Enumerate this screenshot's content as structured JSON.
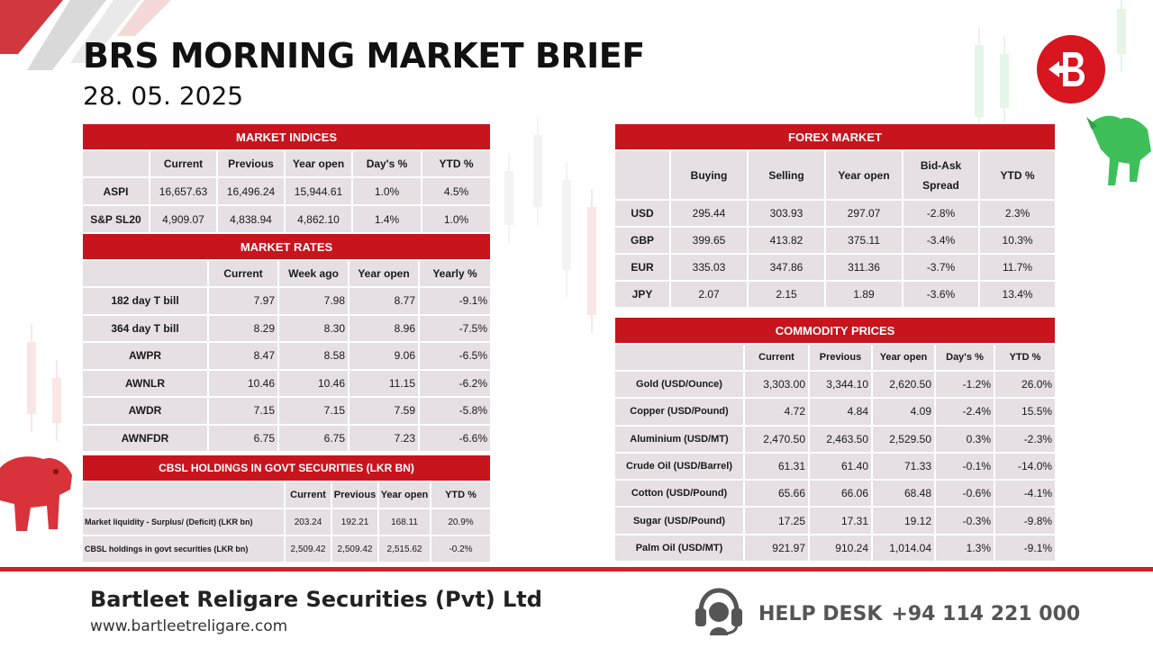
{
  "header": {
    "title": "BRS MORNING MARKET BRIEF",
    "date": "28. 05. 2025"
  },
  "brand": {
    "accent": "#c8141d",
    "cell_bg": "#e6dfe3"
  },
  "market_indices": {
    "title": "MARKET INDICES",
    "columns": [
      "Current",
      "Previous",
      "Year open",
      "Day's %",
      "YTD %"
    ],
    "rows": [
      {
        "label": "ASPI",
        "values": [
          "16,657.63",
          "16,496.24",
          "15,944.61",
          "1.0%",
          "4.5%"
        ]
      },
      {
        "label": "S&P SL20",
        "values": [
          "4,909.07",
          "4,838.94",
          "4,862.10",
          "1.4%",
          "1.0%"
        ]
      }
    ]
  },
  "market_rates": {
    "title": "MARKET RATES",
    "columns": [
      "Current",
      "Week ago",
      "Year open",
      "Yearly %"
    ],
    "rows": [
      {
        "label": "182 day T bill",
        "values": [
          "7.97",
          "7.98",
          "8.77",
          "-9.1%"
        ]
      },
      {
        "label": "364 day T bill",
        "values": [
          "8.29",
          "8.30",
          "8.96",
          "-7.5%"
        ]
      },
      {
        "label": "AWPR",
        "values": [
          "8.47",
          "8.58",
          "9.06",
          "-6.5%"
        ]
      },
      {
        "label": "AWNLR",
        "values": [
          "10.46",
          "10.46",
          "11.15",
          "-6.2%"
        ]
      },
      {
        "label": "AWDR",
        "values": [
          "7.15",
          "7.15",
          "7.59",
          "-5.8%"
        ]
      },
      {
        "label": "AWNFDR",
        "values": [
          "6.75",
          "6.75",
          "7.23",
          "-6.6%"
        ]
      }
    ]
  },
  "cbsl_holdings": {
    "title": "CBSL HOLDINGS IN GOVT SECURITIES (LKR BN)",
    "columns": [
      "Current",
      "Previous",
      "Year open",
      "YTD %"
    ],
    "rows": [
      {
        "label": "Market liquidity - Surplus/ (Deficit) (LKR bn)",
        "values": [
          "203.24",
          "192.21",
          "168.11",
          "20.9%"
        ]
      },
      {
        "label": "CBSL holdings in govt securities (LKR bn)",
        "values": [
          "2,509.42",
          "2,509.42",
          "2,515.62",
          "-0.2%"
        ]
      }
    ]
  },
  "forex_market": {
    "title": "FOREX MARKET",
    "columns": [
      "Buying",
      "Selling",
      "Year open",
      "Bid-Ask Spread",
      "YTD %"
    ],
    "rows": [
      {
        "label": "USD",
        "values": [
          "295.44",
          "303.93",
          "297.07",
          "-2.8%",
          "2.3%"
        ]
      },
      {
        "label": "GBP",
        "values": [
          "399.65",
          "413.82",
          "375.11",
          "-3.4%",
          "10.3%"
        ]
      },
      {
        "label": "EUR",
        "values": [
          "335.03",
          "347.86",
          "311.36",
          "-3.7%",
          "11.7%"
        ]
      },
      {
        "label": "JPY",
        "values": [
          "2.07",
          "2.15",
          "1.89",
          "-3.6%",
          "13.4%"
        ]
      }
    ]
  },
  "commodity_prices": {
    "title": "COMMODITY PRICES",
    "columns": [
      "Current",
      "Previous",
      "Year open",
      "Day's %",
      "YTD %"
    ],
    "rows": [
      {
        "label": "Gold (USD/Ounce)",
        "values": [
          "3,303.00",
          "3,344.10",
          "2,620.50",
          "-1.2%",
          "26.0%"
        ]
      },
      {
        "label": "Copper (USD/Pound)",
        "values": [
          "4.72",
          "4.84",
          "4.09",
          "-2.4%",
          "15.5%"
        ]
      },
      {
        "label": "Aluminium (USD/MT)",
        "values": [
          "2,470.50",
          "2,463.50",
          "2,529.50",
          "0.3%",
          "-2.3%"
        ]
      },
      {
        "label": "Crude Oil (USD/Barrel)",
        "values": [
          "61.31",
          "61.40",
          "71.33",
          "-0.1%",
          "-14.0%"
        ]
      },
      {
        "label": "Cotton (USD/Pound)",
        "values": [
          "65.66",
          "66.06",
          "68.48",
          "-0.6%",
          "-4.1%"
        ]
      },
      {
        "label": "Sugar (USD/Pound)",
        "values": [
          "17.25",
          "17.31",
          "19.12",
          "-0.3%",
          "-9.8%"
        ]
      },
      {
        "label": "Palm Oil (USD/MT)",
        "values": [
          "921.97",
          "910.24",
          "1,014.04",
          "1.3%",
          "-9.1%"
        ]
      }
    ]
  },
  "footer": {
    "company": "Bartleet Religare Securities (Pvt) Ltd",
    "website": "www.bartleetreligare.com",
    "helpdesk_label": "HELP DESK",
    "helpdesk_phone": "+94 114 221 000"
  },
  "icons": [
    "brs-logo-icon",
    "bull-icon",
    "bear-icon",
    "headset-icon"
  ]
}
